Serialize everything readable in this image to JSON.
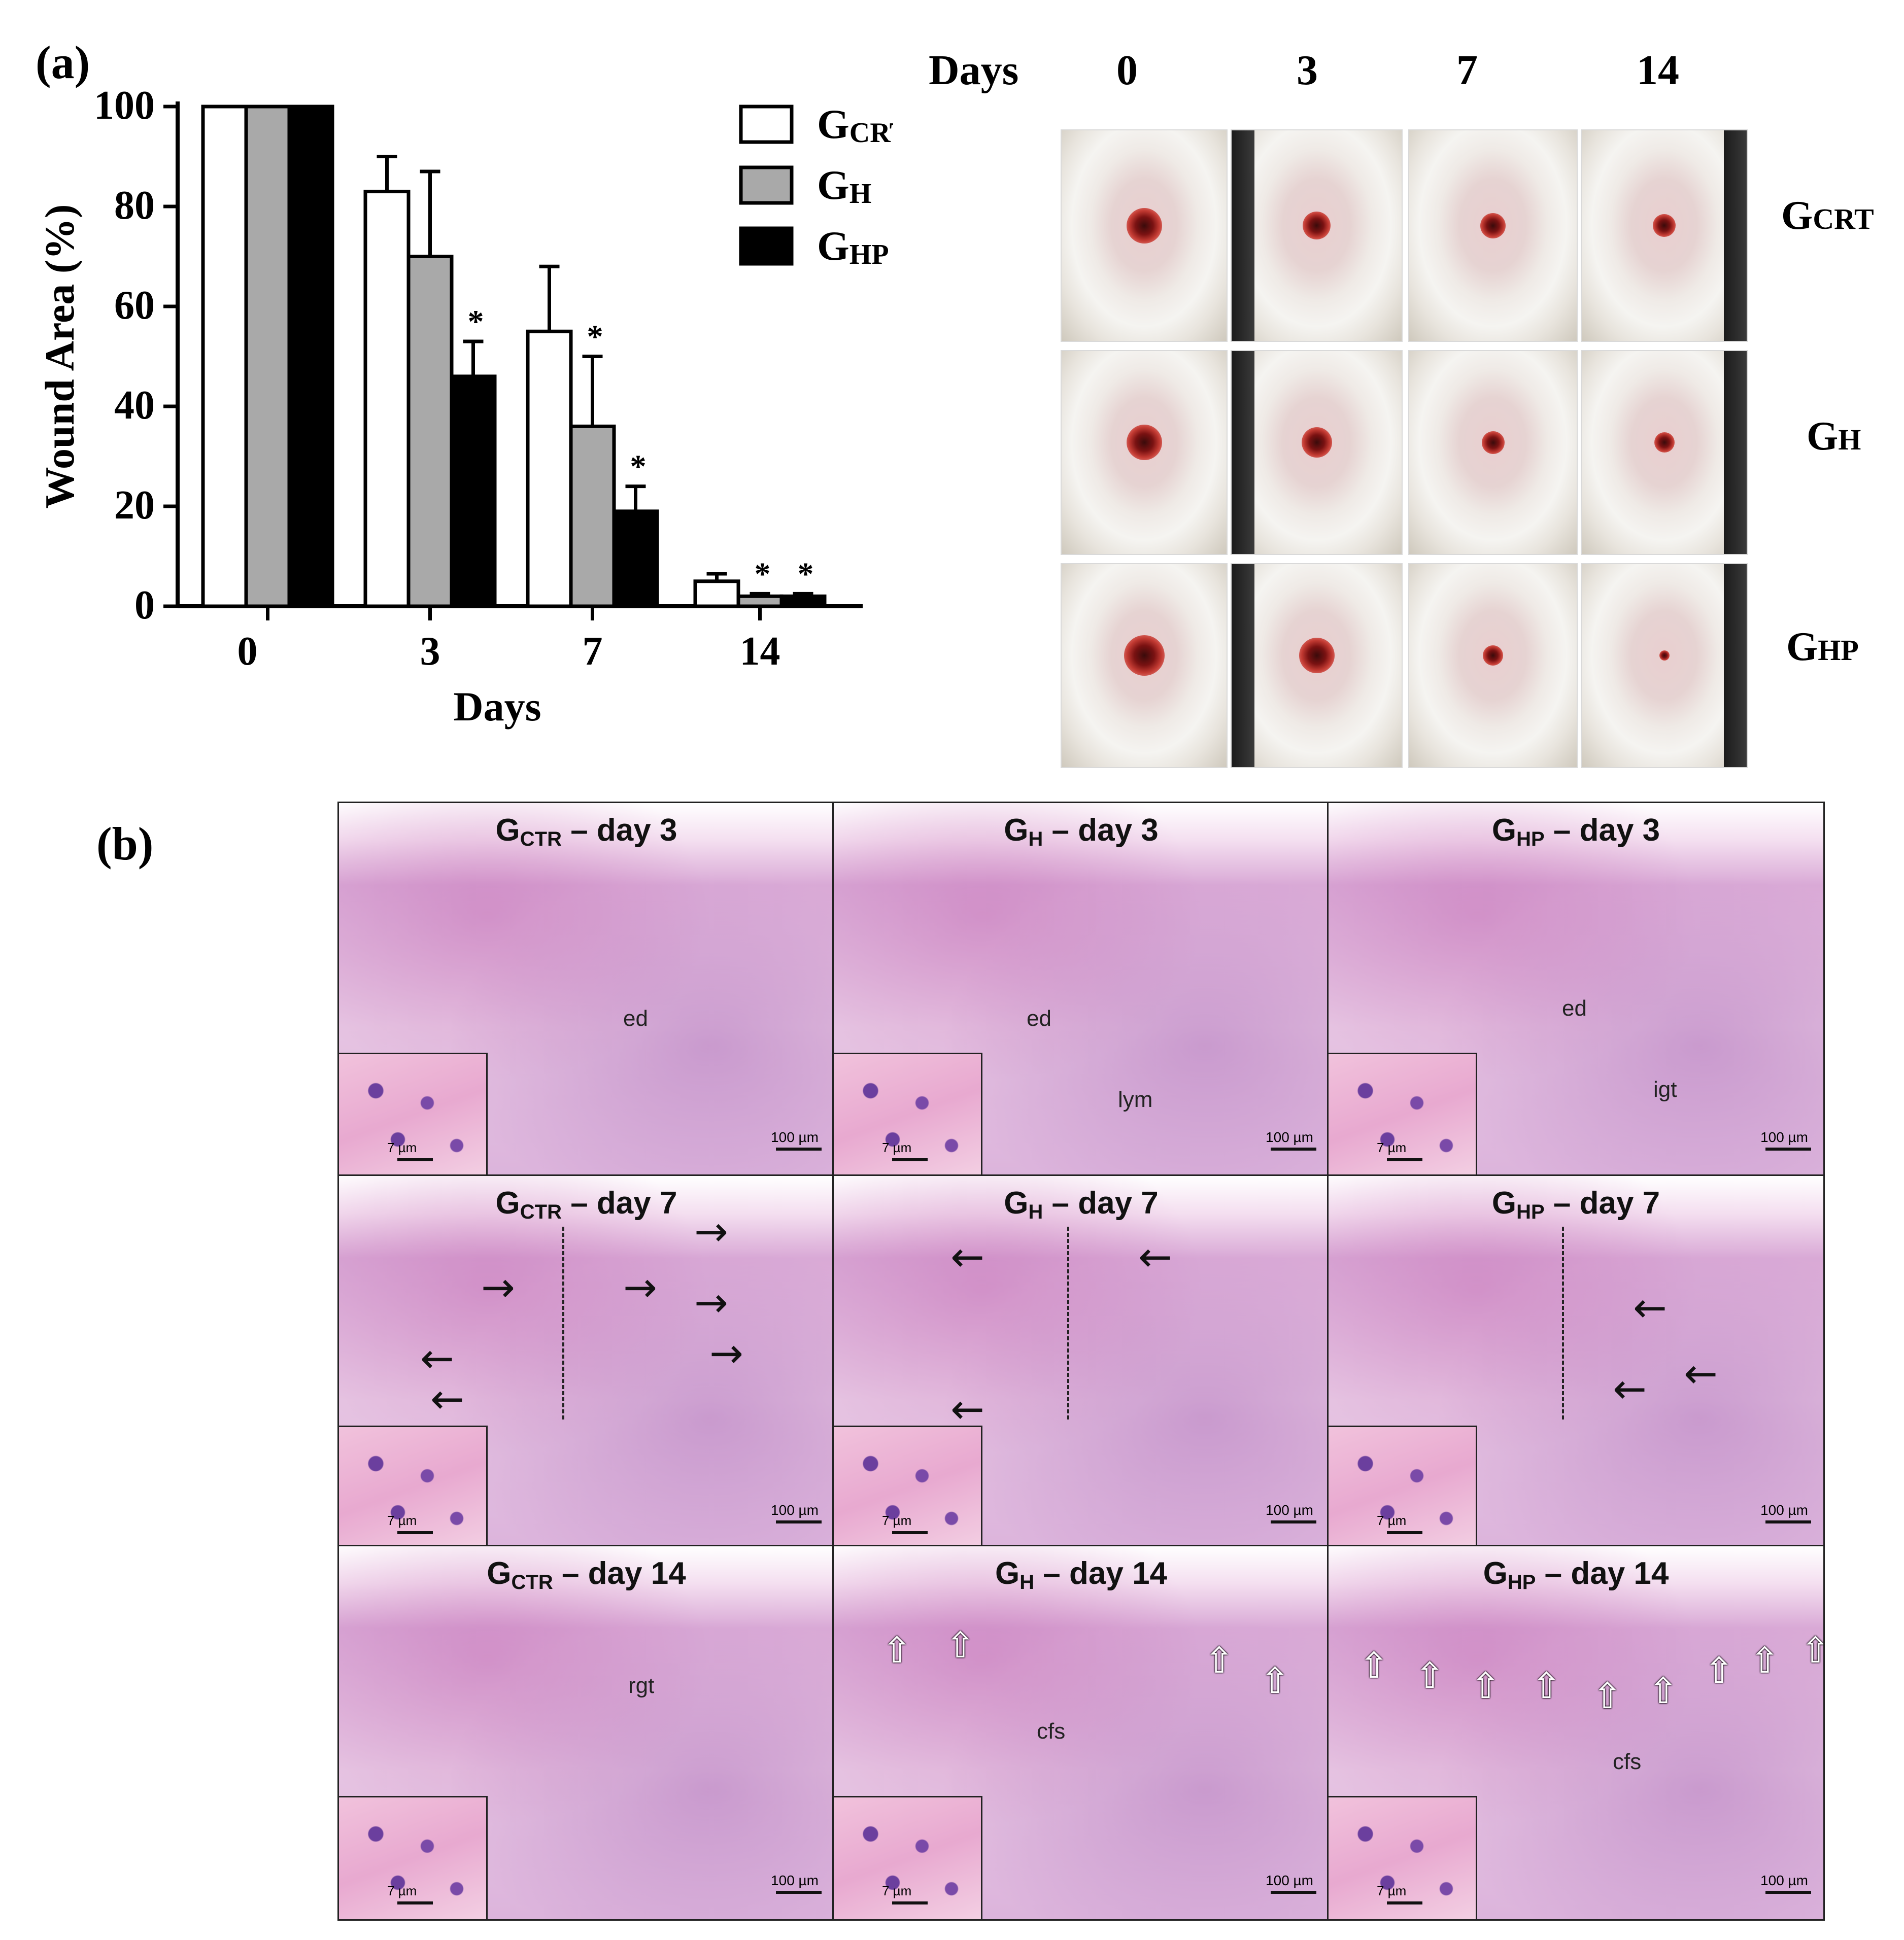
{
  "panel_a_label": "(a)",
  "panel_b_label": "(b)",
  "chart_data": {
    "type": "bar",
    "categories": [
      "0",
      "3",
      "7",
      "14"
    ],
    "series": [
      {
        "name": "GCRT",
        "name_main": "G",
        "name_sub": "CRT",
        "color": "#ffffff",
        "values": [
          100,
          83,
          55,
          5
        ],
        "errors": [
          0,
          7,
          13,
          1.5
        ],
        "significant": [
          false,
          false,
          false,
          false
        ]
      },
      {
        "name": "GH",
        "name_main": "G",
        "name_sub": "H",
        "color": "#a9a9a9",
        "values": [
          100,
          70,
          36,
          2
        ],
        "errors": [
          0,
          17,
          14,
          0.5
        ],
        "significant": [
          false,
          false,
          true,
          true
        ]
      },
      {
        "name": "GHP",
        "name_main": "G",
        "name_sub": "HP",
        "color": "#000000",
        "values": [
          100,
          46,
          19,
          2
        ],
        "errors": [
          0,
          7,
          5,
          0.5
        ],
        "significant": [
          false,
          true,
          true,
          true
        ]
      }
    ],
    "xlabel": "Days",
    "ylabel": "Wound Area (%)",
    "ylim": [
      0,
      100
    ],
    "yticks": [
      0,
      20,
      40,
      60,
      80,
      100
    ],
    "significance_marker": "*",
    "legend_position": "top-right"
  },
  "photos": {
    "header_label": "Days",
    "columns": [
      "0",
      "3",
      "7",
      "14"
    ],
    "rows": [
      {
        "main": "G",
        "sub": "CRT"
      },
      {
        "main": "G",
        "sub": "H"
      },
      {
        "main": "G",
        "sub": "HP"
      }
    ]
  },
  "histology": {
    "panels": [
      {
        "group": "G",
        "sub": "CTR",
        "day": "– day 3",
        "tissue": "ed",
        "tissue2": ""
      },
      {
        "group": "G",
        "sub": "H",
        "day": "– day 3",
        "tissue": "ed",
        "tissue2": "lym"
      },
      {
        "group": "G",
        "sub": "HP",
        "day": "– day 3",
        "tissue": "ed",
        "tissue2": "igt"
      },
      {
        "group": "G",
        "sub": "CTR",
        "day": "– day 7",
        "tissue": "",
        "tissue2": ""
      },
      {
        "group": "G",
        "sub": "H",
        "day": "– day 7",
        "tissue": "",
        "tissue2": ""
      },
      {
        "group": "G",
        "sub": "HP",
        "day": "– day 7",
        "tissue": "",
        "tissue2": ""
      },
      {
        "group": "G",
        "sub": "CTR",
        "day": "– day 14",
        "tissue": "rgt",
        "tissue2": ""
      },
      {
        "group": "G",
        "sub": "H",
        "day": "– day 14",
        "tissue": "cfs",
        "tissue2": ""
      },
      {
        "group": "G",
        "sub": "HP",
        "day": "– day 14",
        "tissue": "cfs",
        "tissue2": ""
      }
    ],
    "inset_scale": "7 µm",
    "main_scale": "100 µm"
  }
}
